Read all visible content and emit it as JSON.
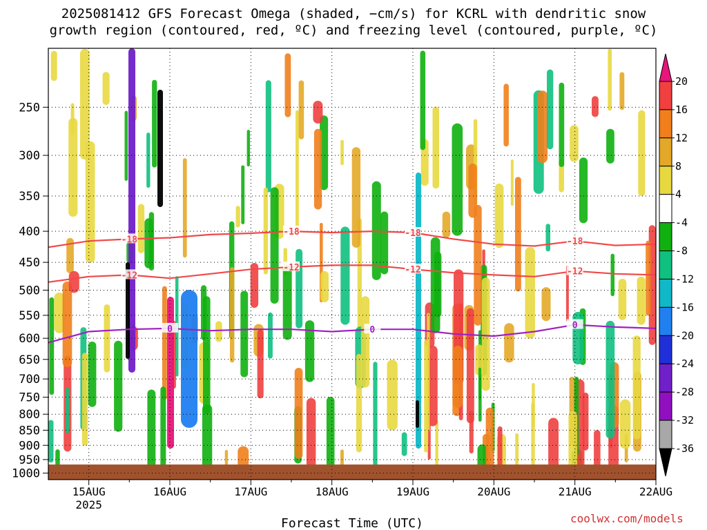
{
  "chart_data": {
    "type": "heatmap",
    "title_line1": "2025081412 GFS Forecast Omega (shaded, −cm/s) for KCRL with dendritic snow",
    "title_line2": "growth region (contoured, red, ºC) and freezing level (contoured, purple, ºC)",
    "xlabel": "Forecast Time (UTC)",
    "credit": "coolwx.com/models",
    "x_ticks": [
      "15AUG",
      "16AUG",
      "17AUG",
      "18AUG",
      "19AUG",
      "20AUG",
      "21AUG",
      "22AUG"
    ],
    "x_year_label": "2025",
    "xlim": [
      "2025-08-14T12",
      "2025-08-22T00"
    ],
    "y_scale": "log-pressure (hPa), inverted",
    "ylim": [
      1025,
      200
    ],
    "y_ticks": [
      250,
      300,
      350,
      400,
      450,
      500,
      550,
      600,
      650,
      700,
      750,
      800,
      850,
      900,
      950,
      1000
    ],
    "grid": true,
    "colorbar": {
      "labels": [
        20,
        16,
        12,
        8,
        4,
        -4,
        -8,
        -12,
        -16,
        -20,
        -24,
        -28,
        -32,
        -36
      ],
      "colors": [
        "#e8157a",
        "#f04040",
        "#f07f1c",
        "#e4a828",
        "#e8d840",
        "#ffffff",
        "#10b010",
        "#10c080",
        "#10b8c8",
        "#2080f0",
        "#2030d8",
        "#7020c8",
        "#9010c0",
        "#a8a8a8",
        "#000000"
      ]
    },
    "contours": [
      {
        "color": "#f04848",
        "labels": [
          "-18",
          "-18",
          "-18",
          "-18"
        ],
        "x": [
          "2025-08-14T12",
          "2025-08-15T00",
          "2025-08-15T12",
          "2025-08-16T00",
          "2025-08-16T12",
          "2025-08-17T00",
          "2025-08-17T12",
          "2025-08-18T00",
          "2025-08-18T12",
          "2025-08-19T00",
          "2025-08-19T12",
          "2025-08-20T00",
          "2025-08-20T12",
          "2025-08-21T00",
          "2025-08-21T12",
          "2025-08-22T00"
        ],
        "pressure": [
          425,
          415,
          412,
          410,
          405,
          403,
          400,
          402,
          400,
          402,
          412,
          420,
          423,
          415,
          422,
          420
        ]
      },
      {
        "color": "#f04848",
        "labels": [
          "-12",
          "-12",
          "-12",
          "-12"
        ],
        "x": [
          "2025-08-14T12",
          "2025-08-15T00",
          "2025-08-15T12",
          "2025-08-16T00",
          "2025-08-16T12",
          "2025-08-17T00",
          "2025-08-17T12",
          "2025-08-18T00",
          "2025-08-18T12",
          "2025-08-19T00",
          "2025-08-19T12",
          "2025-08-20T00",
          "2025-08-20T12",
          "2025-08-21T00",
          "2025-08-21T12",
          "2025-08-22T00"
        ],
        "pressure": [
          485,
          475,
          472,
          478,
          470,
          462,
          458,
          455,
          455,
          462,
          468,
          472,
          475,
          465,
          470,
          472
        ]
      },
      {
        "color": "#a020c0",
        "labels": [
          "0",
          "0",
          "0"
        ],
        "x": [
          "2025-08-14T12",
          "2025-08-15T00",
          "2025-08-15T12",
          "2025-08-16T00",
          "2025-08-16T12",
          "2025-08-17T00",
          "2025-08-17T12",
          "2025-08-18T00",
          "2025-08-18T12",
          "2025-08-19T00",
          "2025-08-19T12",
          "2025-08-20T00",
          "2025-08-20T12",
          "2025-08-21T00",
          "2025-08-21T12",
          "2025-08-22T00"
        ],
        "pressure": [
          610,
          585,
          580,
          578,
          583,
          580,
          580,
          585,
          580,
          580,
          590,
          595,
          585,
          570,
          575,
          578
        ]
      }
    ]
  }
}
